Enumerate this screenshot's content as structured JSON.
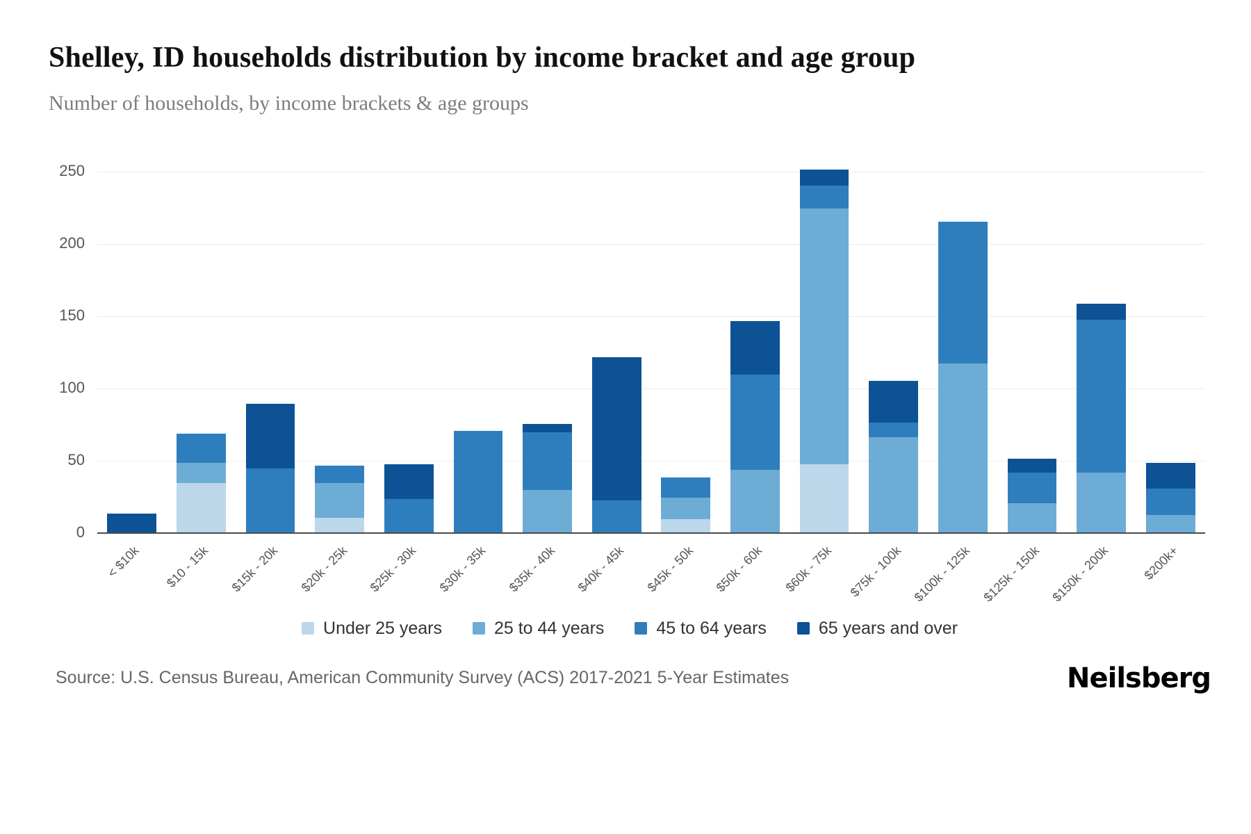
{
  "page": {
    "title": "Shelley, ID households distribution by income bracket and age group",
    "subtitle": "Number of households, by income brackets & age groups",
    "source": "Source: U.S. Census Bureau, American Community Survey (ACS) 2017-2021 5-Year Estimates",
    "brand": "Neilsberg"
  },
  "chart_data": {
    "type": "bar",
    "stacked": true,
    "title": "Shelley, ID households distribution by income bracket and age group",
    "xlabel": "",
    "ylabel": "Number of households",
    "ylim": [
      0,
      260
    ],
    "yticks": [
      0,
      50,
      100,
      150,
      200,
      250
    ],
    "grid": true,
    "legend_position": "bottom",
    "categories": [
      "< $10k",
      "$10 - 15k",
      "$15k - 20k",
      "$20k - 25k",
      "$25k - 30k",
      "$30k - 35k",
      "$35k - 40k",
      "$40k - 45k",
      "$45k - 50k",
      "$50k - 60k",
      "$60k - 75k",
      "$75k - 100k",
      "$100k - 125k",
      "$125k - 150k",
      "$150k - 200k",
      "$200k+"
    ],
    "series": [
      {
        "name": "Under 25 years",
        "color": "#bcd7ea",
        "values": [
          0,
          35,
          0,
          11,
          0,
          0,
          0,
          0,
          10,
          0,
          48,
          0,
          0,
          0,
          0,
          0
        ]
      },
      {
        "name": "25 to 44 years",
        "color": "#6dacd5",
        "values": [
          0,
          14,
          0,
          24,
          0,
          0,
          30,
          0,
          15,
          44,
          177,
          67,
          118,
          21,
          42,
          13
        ]
      },
      {
        "name": "45 to 64 years",
        "color": "#2e7ebd",
        "values": [
          0,
          20,
          45,
          12,
          24,
          71,
          40,
          23,
          14,
          66,
          16,
          10,
          98,
          21,
          106,
          18
        ]
      },
      {
        "name": "65 years and over",
        "color": "#0d5295",
        "values": [
          14,
          0,
          45,
          0,
          24,
          0,
          6,
          99,
          0,
          37,
          11,
          29,
          0,
          10,
          11,
          18
        ]
      }
    ]
  }
}
